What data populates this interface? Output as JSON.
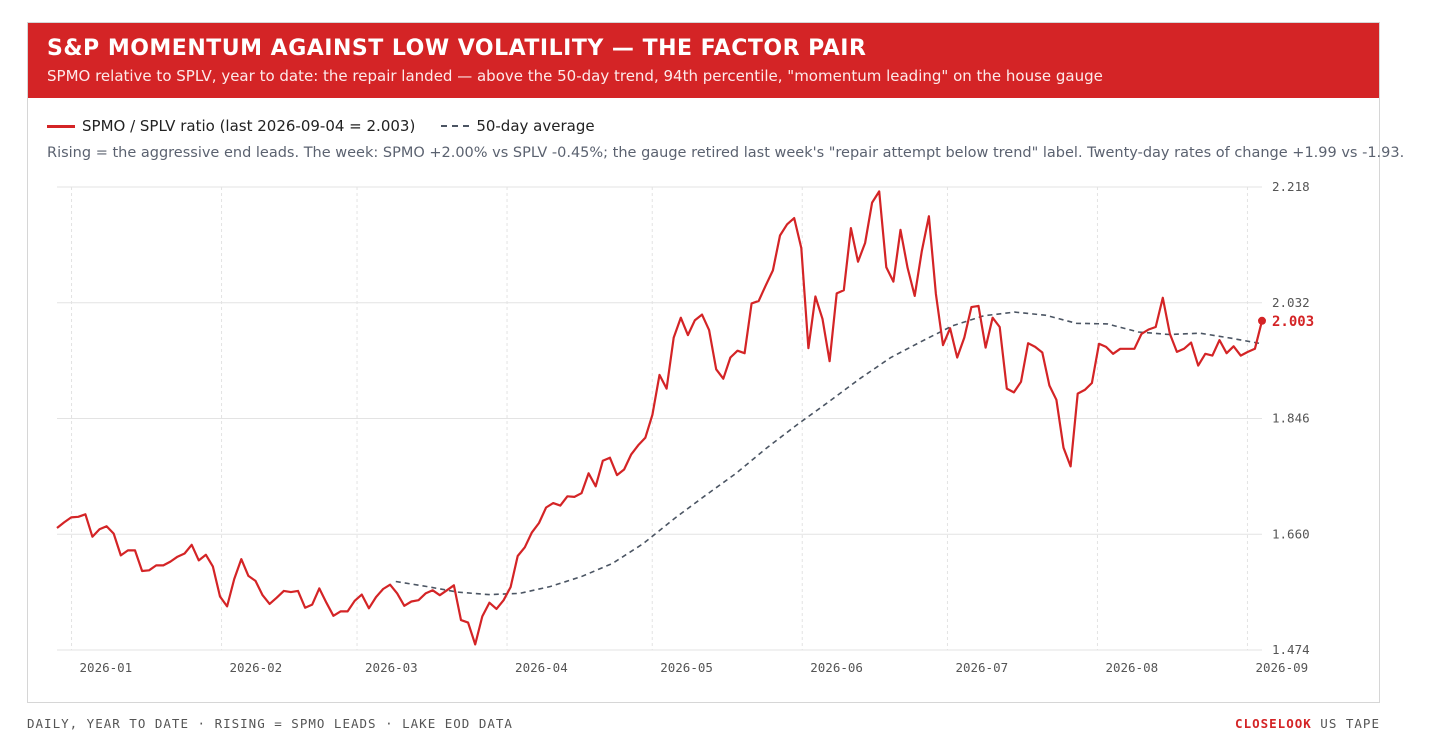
{
  "header": {
    "title": "S&P MOMENTUM AGAINST LOW VOLATILITY — THE FACTOR PAIR",
    "subtitle": "SPMO relative to SPLV, year to date: the repair landed — above the 50-day trend, 94th percentile, \"momentum leading\" on the house gauge"
  },
  "legend": {
    "ratio_label": "SPMO / SPLV ratio (last 2026-09-04 = 2.003)",
    "avg_label": "50-day average"
  },
  "note": "Rising = the aggressive end leads. The week: SPMO +2.00% vs SPLV -0.45%; the gauge retired last week's \"repair attempt below trend\" label. Twenty-day rates of change +1.99 vs -1.93.",
  "footer": {
    "left": "DAILY, YEAR TO DATE · RISING = SPMO LEADS · LAKE EOD DATA",
    "brand": "CLOSELOOK",
    "right_suffix": " US TAPE"
  },
  "colors": {
    "accent": "#d42426",
    "average": "#4b5563",
    "grid": "#e3e3e3"
  },
  "chart_data": {
    "type": "line",
    "xlabel": "",
    "ylabel": "",
    "ylim": [
      1.474,
      2.218
    ],
    "yticks": [
      "1.474",
      "1.660",
      "1.846",
      "2.032",
      "2.218"
    ],
    "x_categories": [
      "2026-01",
      "2026-02",
      "2026-03",
      "2026-04",
      "2026-05",
      "2026-06",
      "2026-07",
      "2026-08",
      "2026-09"
    ],
    "grid": true,
    "last_value_label": "2.003",
    "series": [
      {
        "name": "SPMO / SPLV ratio",
        "x_start": "2025-12-29",
        "x_end": "2026-09-04",
        "values": [
          1.67,
          1.679,
          1.687,
          1.688,
          1.692,
          1.656,
          1.668,
          1.673,
          1.661,
          1.626,
          1.634,
          1.634,
          1.601,
          1.602,
          1.61,
          1.61,
          1.616,
          1.624,
          1.629,
          1.643,
          1.618,
          1.627,
          1.608,
          1.56,
          1.544,
          1.588,
          1.62,
          1.593,
          1.585,
          1.562,
          1.548,
          1.558,
          1.569,
          1.567,
          1.569,
          1.542,
          1.547,
          1.573,
          1.55,
          1.529,
          1.536,
          1.536,
          1.553,
          1.563,
          1.541,
          1.559,
          1.572,
          1.579,
          1.565,
          1.545,
          1.552,
          1.554,
          1.565,
          1.57,
          1.562,
          1.57,
          1.578,
          1.522,
          1.518,
          1.483,
          1.528,
          1.55,
          1.54,
          1.554,
          1.575,
          1.625,
          1.639,
          1.663,
          1.678,
          1.703,
          1.71,
          1.706,
          1.721,
          1.72,
          1.726,
          1.758,
          1.737,
          1.778,
          1.783,
          1.755,
          1.764,
          1.788,
          1.803,
          1.815,
          1.852,
          1.916,
          1.894,
          1.976,
          2.008,
          1.98,
          2.004,
          2.013,
          1.988,
          1.925,
          1.91,
          1.944,
          1.955,
          1.951,
          2.031,
          2.035,
          2.06,
          2.084,
          2.14,
          2.158,
          2.168,
          2.12,
          1.959,
          2.042,
          2.006,
          1.938,
          2.047,
          2.052,
          2.152,
          2.098,
          2.128,
          2.193,
          2.211,
          2.089,
          2.066,
          2.149,
          2.088,
          2.043,
          2.115,
          2.171,
          2.046,
          1.964,
          1.991,
          1.944,
          1.976,
          2.025,
          2.027,
          1.96,
          2.008,
          1.993,
          1.894,
          1.888,
          1.905,
          1.967,
          1.961,
          1.952,
          1.899,
          1.876,
          1.799,
          1.769,
          1.886,
          1.892,
          1.903,
          1.966,
          1.961,
          1.95,
          1.958,
          1.958,
          1.958,
          1.982,
          1.989,
          1.993,
          2.04,
          1.982,
          1.953,
          1.958,
          1.968,
          1.931,
          1.95,
          1.947,
          1.972,
          1.951,
          1.962,
          1.947,
          1.953,
          1.958,
          2.003
        ]
      },
      {
        "name": "50-day average",
        "x_start": "2026-03-09",
        "x_end": "2026-09-04",
        "values": [
          1.584,
          1.576,
          1.567,
          1.563,
          1.565,
          1.576,
          1.592,
          1.613,
          1.645,
          1.685,
          1.722,
          1.758,
          1.799,
          1.837,
          1.873,
          1.91,
          1.944,
          1.97,
          1.995,
          2.011,
          2.017,
          2.012,
          1.999,
          1.998,
          1.985,
          1.981,
          1.983,
          1.975,
          1.966
        ]
      }
    ]
  }
}
